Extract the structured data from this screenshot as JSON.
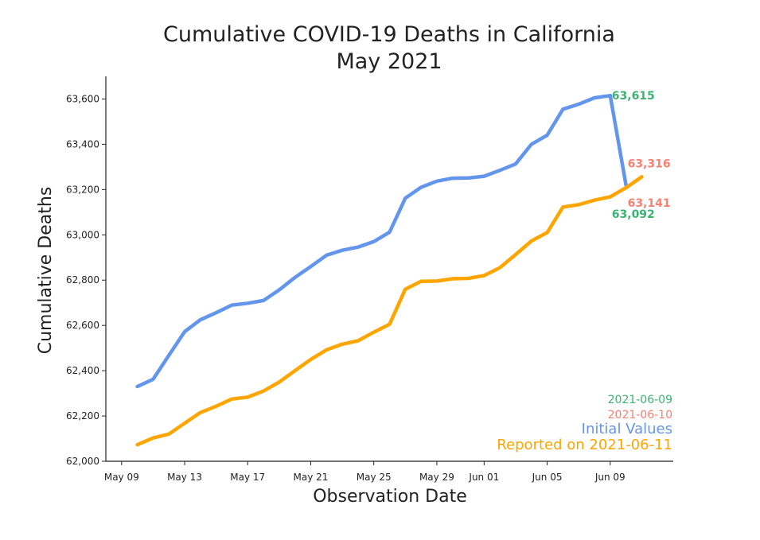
{
  "chart_data": {
    "type": "line",
    "title": "Cumulative COVID-19 Deaths in California",
    "subtitle": "May 2021",
    "xlabel": "Observation Date",
    "ylabel": "Cumulative Deaths",
    "ylim": [
      62000,
      63700
    ],
    "xlim": [
      "2021-05-08",
      "2021-06-13"
    ],
    "grid": false,
    "x_tick_labels": [
      "May 09",
      "May 13",
      "May 17",
      "May 21",
      "May 25",
      "May 29",
      "Jun 01",
      "Jun 05",
      "Jun 09"
    ],
    "x_tick_dates": [
      "2021-05-09",
      "2021-05-13",
      "2021-05-17",
      "2021-05-21",
      "2021-05-25",
      "2021-05-29",
      "2021-06-01",
      "2021-06-05",
      "2021-06-09"
    ],
    "y_tick_values": [
      62000,
      62200,
      62400,
      62600,
      62800,
      63000,
      63200,
      63400,
      63600
    ],
    "y_tick_labels": [
      "62,000",
      "62,200",
      "62,400",
      "62,600",
      "62,800",
      "63,000",
      "63,200",
      "63,400",
      "63,600"
    ],
    "series": [
      {
        "name": "Initial Values",
        "color": "#6495ED",
        "x": [
          "2021-05-10",
          "2021-05-11",
          "2021-05-12",
          "2021-05-13",
          "2021-05-14",
          "2021-05-15",
          "2021-05-16",
          "2021-05-17",
          "2021-05-18",
          "2021-05-19",
          "2021-05-20",
          "2021-05-21",
          "2021-05-22",
          "2021-05-23",
          "2021-05-24",
          "2021-05-25",
          "2021-05-26",
          "2021-05-27",
          "2021-05-28",
          "2021-05-29",
          "2021-05-30",
          "2021-05-31",
          "2021-06-01",
          "2021-06-02",
          "2021-06-03",
          "2021-06-04",
          "2021-06-05",
          "2021-06-06",
          "2021-06-07",
          "2021-06-08",
          "2021-06-09",
          "2021-06-10"
        ],
        "values": [
          62330,
          62362,
          62468,
          62572,
          62625,
          62656,
          62690,
          62698,
          62710,
          62757,
          62812,
          62860,
          62910,
          62932,
          62946,
          62970,
          63012,
          63162,
          63210,
          63237,
          63250,
          63251,
          63259,
          63285,
          63313,
          63400,
          63440,
          63555,
          63577,
          63605,
          63615,
          63220
        ]
      },
      {
        "name": "Reported on 2021-06-11",
        "color": "#FFA500",
        "x": [
          "2021-05-10",
          "2021-05-11",
          "2021-05-12",
          "2021-05-13",
          "2021-05-14",
          "2021-05-15",
          "2021-05-16",
          "2021-05-17",
          "2021-05-18",
          "2021-05-19",
          "2021-05-20",
          "2021-05-21",
          "2021-05-22",
          "2021-05-23",
          "2021-05-24",
          "2021-05-25",
          "2021-05-26",
          "2021-05-27",
          "2021-05-28",
          "2021-05-29",
          "2021-05-30",
          "2021-05-31",
          "2021-06-01",
          "2021-06-02",
          "2021-06-03",
          "2021-06-04",
          "2021-06-05",
          "2021-06-06",
          "2021-06-07",
          "2021-06-08",
          "2021-06-09",
          "2021-06-10",
          "2021-06-11"
        ],
        "values": [
          62073,
          62103,
          62120,
          62168,
          62215,
          62243,
          62275,
          62283,
          62310,
          62350,
          62400,
          62450,
          62492,
          62517,
          62532,
          62570,
          62605,
          62760,
          62795,
          62796,
          62806,
          62808,
          62820,
          62855,
          62913,
          62973,
          63010,
          63123,
          63133,
          63153,
          63168,
          63208,
          63256
        ]
      }
    ],
    "annotations": [
      {
        "text": "63,615",
        "color": "#3CB371",
        "x": "2021-06-09",
        "y": 63615
      },
      {
        "text": "63,316",
        "color": "#FA8072",
        "x": "2021-06-10",
        "y": 63316
      },
      {
        "text": "63,141",
        "color": "#FA8072",
        "x": "2021-06-10",
        "y": 63141
      },
      {
        "text": "63,092",
        "color": "#3CB371",
        "x": "2021-06-09",
        "y": 63092
      }
    ],
    "legend": {
      "placement": "bottom-right",
      "items": [
        {
          "text": "2021-06-09",
          "color": "#3CB371",
          "size": "small"
        },
        {
          "text": "2021-06-10",
          "color": "#FA8072",
          "size": "small"
        },
        {
          "text": "Initial Values",
          "color": "#6495ED",
          "size": "big"
        },
        {
          "text": "Reported on 2021-06-11",
          "color": "#FFA500",
          "size": "big"
        }
      ]
    }
  }
}
